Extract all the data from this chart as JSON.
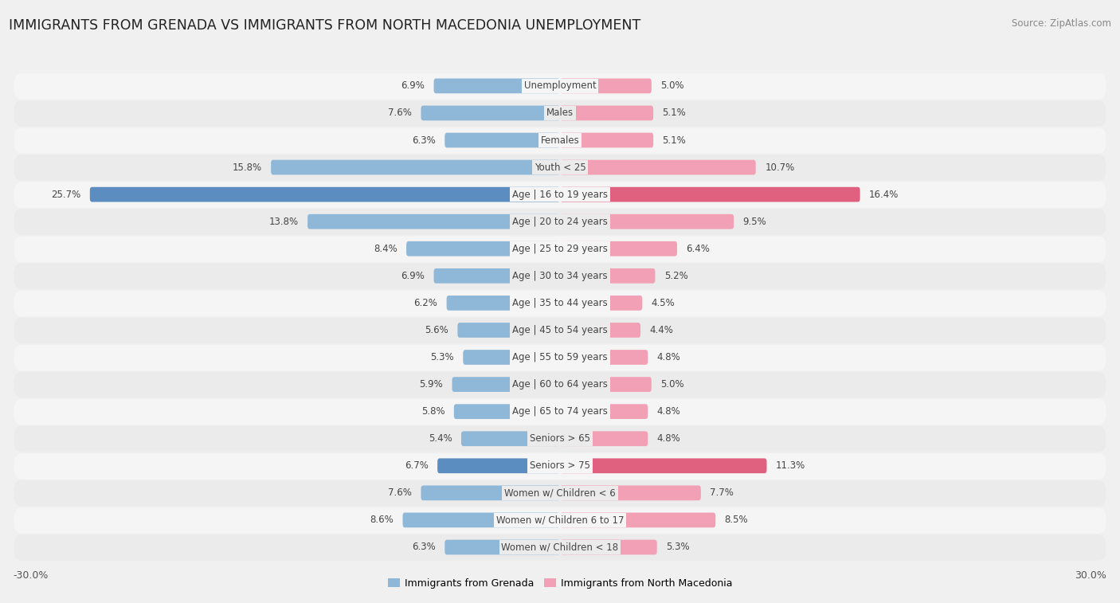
{
  "title": "IMMIGRANTS FROM GRENADA VS IMMIGRANTS FROM NORTH MACEDONIA UNEMPLOYMENT",
  "source": "Source: ZipAtlas.com",
  "categories": [
    "Unemployment",
    "Males",
    "Females",
    "Youth < 25",
    "Age | 16 to 19 years",
    "Age | 20 to 24 years",
    "Age | 25 to 29 years",
    "Age | 30 to 34 years",
    "Age | 35 to 44 years",
    "Age | 45 to 54 years",
    "Age | 55 to 59 years",
    "Age | 60 to 64 years",
    "Age | 65 to 74 years",
    "Seniors > 65",
    "Seniors > 75",
    "Women w/ Children < 6",
    "Women w/ Children 6 to 17",
    "Women w/ Children < 18"
  ],
  "grenada_values": [
    6.9,
    7.6,
    6.3,
    15.8,
    25.7,
    13.8,
    8.4,
    6.9,
    6.2,
    5.6,
    5.3,
    5.9,
    5.8,
    5.4,
    6.7,
    7.6,
    8.6,
    6.3
  ],
  "macedonia_values": [
    5.0,
    5.1,
    5.1,
    10.7,
    16.4,
    9.5,
    6.4,
    5.2,
    4.5,
    4.4,
    4.8,
    5.0,
    4.8,
    4.8,
    11.3,
    7.7,
    8.5,
    5.3
  ],
  "grenada_color": "#8fb8d8",
  "macedonia_color": "#f2a0b5",
  "grenada_highlight_color": "#5b8dc0",
  "macedonia_highlight_color": "#e06080",
  "row_bg_odd": "#f5f5f5",
  "row_bg_even": "#ebebeb",
  "axis_limit": 30.0,
  "legend_grenada": "Immigrants from Grenada",
  "legend_macedonia": "Immigrants from North Macedonia",
  "title_fontsize": 12.5,
  "source_fontsize": 8.5,
  "label_fontsize": 8.5,
  "value_fontsize": 8.5,
  "axis_label_fontsize": 9
}
